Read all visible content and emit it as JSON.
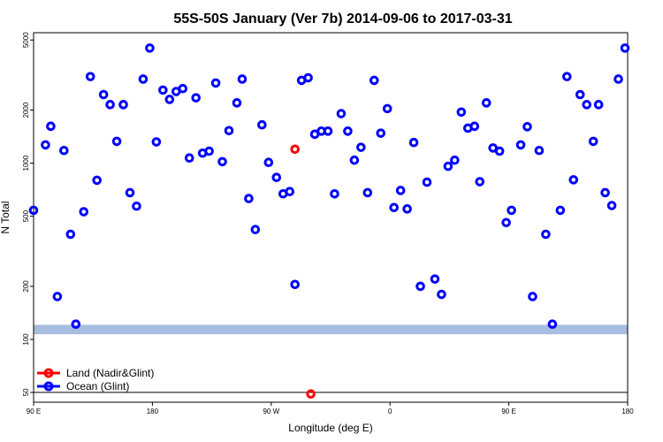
{
  "chart_data": {
    "type": "scatter",
    "title": "55S-50S January (Ver 7b)   2014-09-06 to 2017-03-31",
    "xlabel": "Longitude (deg E)",
    "ylabel": "N Total",
    "x_ticks": [
      {
        "value": 90,
        "label": "90 E"
      },
      {
        "value": 180,
        "label": "180"
      },
      {
        "value": 270,
        "label": "90 W"
      },
      {
        "value": 360,
        "label": "0"
      },
      {
        "value": 450,
        "label": "90 E"
      },
      {
        "value": 540,
        "label": "180"
      }
    ],
    "y_ticks": [
      50,
      100,
      200,
      500,
      1000,
      2000,
      5000
    ],
    "xlim": [
      90,
      540
    ],
    "ylim": [
      44,
      5500
    ],
    "y_scale": "log",
    "reference_line": 50,
    "band": {
      "ymin": 107,
      "ymax": 121,
      "color": "#a7bde0"
    },
    "series": [
      {
        "name": "Land (Nadir&Glint)",
        "color": "#ff0000",
        "points": [
          [
            288,
            1200
          ],
          [
            300,
            49
          ]
        ]
      },
      {
        "name": "Ocean (Glint)",
        "color": "#0000ff",
        "points": [
          [
            90,
            540
          ],
          [
            99,
            1270
          ],
          [
            103,
            1620
          ],
          [
            108,
            175
          ],
          [
            113,
            1180
          ],
          [
            118,
            395
          ],
          [
            122,
            122
          ],
          [
            128,
            530
          ],
          [
            133,
            3100
          ],
          [
            138,
            800
          ],
          [
            143,
            2450
          ],
          [
            148,
            2150
          ],
          [
            153,
            1330
          ],
          [
            158,
            2150
          ],
          [
            163,
            680
          ],
          [
            168,
            570
          ],
          [
            173,
            3000
          ],
          [
            178,
            4500
          ],
          [
            183,
            1320
          ],
          [
            188,
            2600
          ],
          [
            193,
            2300
          ],
          [
            198,
            2550
          ],
          [
            203,
            2650
          ],
          [
            208,
            1070
          ],
          [
            213,
            2350
          ],
          [
            218,
            1140
          ],
          [
            223,
            1170
          ],
          [
            228,
            2850
          ],
          [
            233,
            1020
          ],
          [
            238,
            1530
          ],
          [
            244,
            2200
          ],
          [
            248,
            3000
          ],
          [
            253,
            630
          ],
          [
            258,
            420
          ],
          [
            263,
            1650
          ],
          [
            268,
            1010
          ],
          [
            274,
            830
          ],
          [
            279,
            670
          ],
          [
            284,
            690
          ],
          [
            288,
            205
          ],
          [
            293,
            2950
          ],
          [
            298,
            3050
          ],
          [
            303,
            1460
          ],
          [
            308,
            1520
          ],
          [
            313,
            1520
          ],
          [
            318,
            670
          ],
          [
            323,
            1910
          ],
          [
            328,
            1520
          ],
          [
            333,
            1040
          ],
          [
            338,
            1230
          ],
          [
            343,
            680
          ],
          [
            348,
            2950
          ],
          [
            353,
            1480
          ],
          [
            358,
            2040
          ],
          [
            363,
            560
          ],
          [
            368,
            700
          ],
          [
            373,
            550
          ],
          [
            378,
            1310
          ],
          [
            383,
            200
          ],
          [
            388,
            780
          ],
          [
            394,
            220
          ],
          [
            399,
            180
          ],
          [
            404,
            960
          ],
          [
            409,
            1040
          ],
          [
            414,
            1950
          ],
          [
            419,
            1580
          ],
          [
            424,
            1620
          ],
          [
            428,
            785
          ],
          [
            433,
            2200
          ],
          [
            438,
            1220
          ],
          [
            443,
            1170
          ],
          [
            448,
            460
          ],
          [
            452,
            540
          ],
          [
            459,
            1270
          ],
          [
            464,
            1610
          ],
          [
            468,
            175
          ],
          [
            473,
            1180
          ],
          [
            478,
            395
          ],
          [
            483,
            122
          ],
          [
            489,
            540
          ],
          [
            494,
            3100
          ],
          [
            499,
            805
          ],
          [
            504,
            2450
          ],
          [
            509,
            2150
          ],
          [
            514,
            1330
          ],
          [
            518,
            2150
          ],
          [
            523,
            680
          ],
          [
            528,
            575
          ],
          [
            533,
            3000
          ],
          [
            538,
            4500
          ]
        ]
      }
    ],
    "legend": {
      "placement": "bottom-left"
    }
  }
}
